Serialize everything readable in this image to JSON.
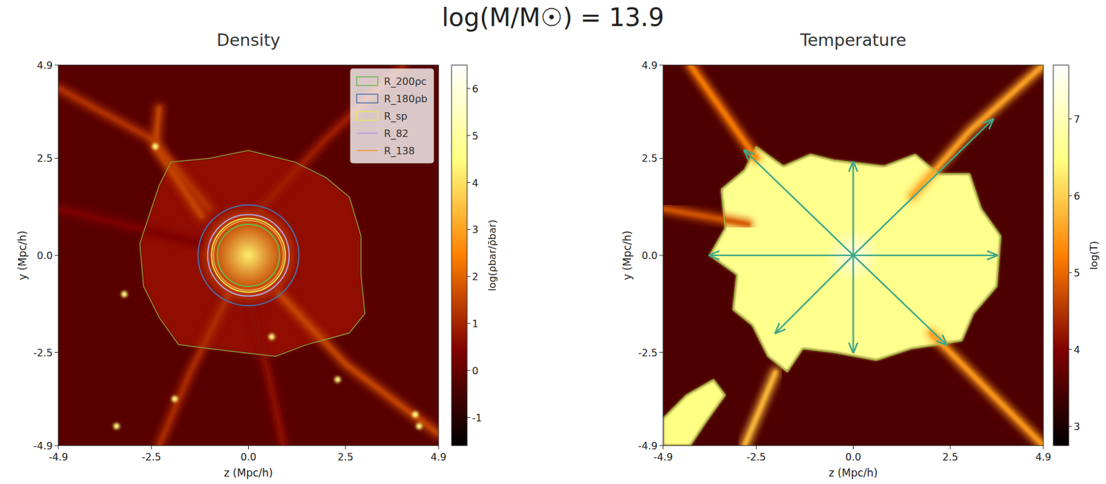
{
  "figure": {
    "title": "log(M/M☉) = 13.9"
  },
  "chart_data": [
    {
      "type": "heatmap",
      "title": "Density",
      "x_label": "z (Mpc/h)",
      "y_label": "y (Mpc/h)",
      "xlim": [
        -4.9,
        4.9
      ],
      "ylim": [
        -4.9,
        4.9
      ],
      "xticks": [
        -4.9,
        -2.5,
        {
          "value": 0,
          "label": "0.0"
        },
        2.5,
        4.9
      ],
      "yticks": [
        -4.9,
        -2.5,
        {
          "value": 0,
          "label": "0.0"
        },
        2.5,
        4.9
      ],
      "colorbar": {
        "label": "log(ρbar/ρ̄bar)",
        "range": [
          -1.6,
          6.5
        ],
        "ticks": [
          -1,
          0,
          1,
          2,
          3,
          4,
          5,
          6
        ]
      },
      "background_value": -0.2,
      "regions": [
        {
          "points": [
            [
              -2.0,
              2.4
            ],
            [
              -1.0,
              2.5
            ],
            [
              0.0,
              2.7
            ],
            [
              1.2,
              2.4
            ],
            [
              2.0,
              2.0
            ],
            [
              2.6,
              1.5
            ],
            [
              2.9,
              0.5
            ],
            [
              2.9,
              -0.5
            ],
            [
              3.0,
              -1.5
            ],
            [
              2.6,
              -2.0
            ],
            [
              1.5,
              -2.3
            ],
            [
              0.7,
              -2.6
            ],
            [
              -0.2,
              -2.5
            ],
            [
              -1.0,
              -2.4
            ],
            [
              -1.8,
              -2.3
            ],
            [
              -2.3,
              -1.6
            ],
            [
              -2.7,
              -0.8
            ],
            [
              -2.8,
              0.3
            ],
            [
              -2.5,
              1.2
            ],
            [
              -2.3,
              1.8
            ]
          ],
          "value": 0.7,
          "color": "#8a9a3a"
        }
      ],
      "filaments": [
        {
          "points": [
            [
              -4.9,
              4.3
            ],
            [
              -2.5,
              3.0
            ],
            [
              -1.0,
              1.2
            ]
          ],
          "value": 1.2
        },
        {
          "points": [
            [
              -2.3,
              3.8
            ],
            [
              -2.4,
              2.8
            ],
            [
              -1.2,
              1.0
            ]
          ],
          "value": 1.5
        },
        {
          "points": [
            [
              0.3,
              1.2
            ],
            [
              2.0,
              3.0
            ],
            [
              4.0,
              4.9
            ]
          ],
          "value": 0.9
        },
        {
          "points": [
            [
              -0.5,
              -1.0
            ],
            [
              -1.5,
              -3.0
            ],
            [
              -2.3,
              -4.9
            ]
          ],
          "value": 1.1
        },
        {
          "points": [
            [
              0.8,
              -1.0
            ],
            [
              2.5,
              -2.8
            ],
            [
              4.9,
              -4.6
            ]
          ],
          "value": 1.5
        },
        {
          "points": [
            [
              -4.9,
              1.2
            ],
            [
              -1.2,
              0.3
            ]
          ],
          "value": 0.4
        },
        {
          "points": [
            [
              0.0,
              -1.2
            ],
            [
              0.5,
              -3.0
            ],
            [
              0.9,
              -4.9
            ]
          ],
          "value": 0.6
        }
      ],
      "halo": {
        "center": [
          0,
          0
        ],
        "radius": 1.3,
        "center_value": 4.2,
        "edge_value": 1.6
      },
      "clumps": {
        "points": [
          [
            -2.4,
            2.8
          ],
          [
            -3.4,
            -4.4
          ],
          [
            4.4,
            -4.4
          ],
          [
            2.3,
            -3.2
          ],
          [
            -1.9,
            -3.7
          ],
          [
            4.3,
            -4.1
          ],
          [
            -3.2,
            -1.0
          ],
          [
            0.6,
            -2.1
          ]
        ],
        "value": 4.5
      },
      "contours": [
        {
          "name": "R_200ρc",
          "color": "#66bb55",
          "radius": 0.8,
          "marker": "square"
        },
        {
          "name": "R_180ρb",
          "color": "#4a6fa5",
          "radius": 1.3,
          "marker": "square"
        },
        {
          "name": "R_sp",
          "color": "#e6e65a",
          "radius": 0.95,
          "marker": "square"
        },
        {
          "name": "R_82",
          "color": "#b4a4e6",
          "radius": 1.05,
          "marker": "line"
        },
        {
          "name": "R_138",
          "color": "#f0a050",
          "radius": 0.9,
          "marker": "line"
        }
      ],
      "legend": "upper right"
    },
    {
      "type": "heatmap",
      "title": "Temperature",
      "x_label": "z (Mpc/h)",
      "y_label": "y (Mpc/h)",
      "xlim": [
        -4.9,
        4.9
      ],
      "ylim": [
        -4.9,
        4.9
      ],
      "xticks": [
        -4.9,
        -2.5,
        {
          "value": 0,
          "label": "0.0"
        },
        2.5,
        4.9
      ],
      "yticks": [
        -4.9,
        -2.5,
        {
          "value": 0,
          "label": "0.0"
        },
        2.5,
        4.9
      ],
      "colorbar": {
        "label": "log(T)",
        "range": [
          2.75,
          7.7
        ],
        "ticks": [
          3,
          4,
          5,
          6,
          7
        ]
      },
      "background_value": 3.5,
      "regions": [
        {
          "points": [
            [
              -0.5,
              2.45
            ],
            [
              0.8,
              2.3
            ],
            [
              1.6,
              2.6
            ],
            [
              2.2,
              2.1
            ],
            [
              3.0,
              2.1
            ],
            [
              3.3,
              1.2
            ],
            [
              3.8,
              0.5
            ],
            [
              3.7,
              -0.8
            ],
            [
              3.1,
              -1.5
            ],
            [
              2.8,
              -2.2
            ],
            [
              2.2,
              -2.3
            ],
            [
              1.5,
              -2.4
            ],
            [
              0.6,
              -2.7
            ],
            [
              -0.5,
              -2.5
            ],
            [
              -1.3,
              -2.4
            ],
            [
              -1.7,
              -3.0
            ],
            [
              -2.2,
              -2.6
            ],
            [
              -2.6,
              -1.8
            ],
            [
              -3.1,
              -1.4
            ],
            [
              -3.0,
              -0.5
            ],
            [
              -3.7,
              0.0
            ],
            [
              -3.3,
              0.7
            ],
            [
              -3.4,
              1.7
            ],
            [
              -2.8,
              2.2
            ],
            [
              -2.5,
              2.8
            ],
            [
              -1.8,
              2.3
            ],
            [
              -1.1,
              2.6
            ]
          ],
          "value": 6.6,
          "color": "#9bc53d"
        },
        {
          "points": [
            [
              -4.9,
              -4.9
            ],
            [
              -4.9,
              -4.2
            ],
            [
              -4.3,
              -3.6
            ],
            [
              -3.6,
              -3.2
            ],
            [
              -3.3,
              -3.6
            ],
            [
              -3.8,
              -4.3
            ],
            [
              -4.2,
              -4.9
            ]
          ],
          "value": 6.5,
          "color": "#9bc53d"
        }
      ],
      "filaments": [
        {
          "points": [
            [
              1.5,
              1.5
            ],
            [
              3.0,
              3.2
            ],
            [
              4.9,
              4.9
            ]
          ],
          "value": 5.6
        },
        {
          "points": [
            [
              2.0,
              -2.0
            ],
            [
              3.5,
              -3.5
            ],
            [
              4.9,
              -4.9
            ]
          ],
          "value": 5.5
        },
        {
          "points": [
            [
              -2.0,
              -3.0
            ],
            [
              -2.8,
              -4.9
            ]
          ],
          "value": 5.8
        },
        {
          "points": [
            [
              -2.5,
              2.5
            ],
            [
              -4.2,
              4.9
            ]
          ],
          "value": 5.2
        },
        {
          "points": [
            [
              -4.9,
              1.2
            ],
            [
              -2.7,
              0.8
            ]
          ],
          "value": 4.8
        }
      ],
      "halo": {
        "center": [
          0,
          0
        ],
        "radius": 1.0,
        "center_value": 7.5,
        "edge_value": 6.6
      },
      "arrows": {
        "color": "#3ea88b",
        "origin": [
          0,
          0
        ],
        "ends": [
          [
            0,
            2.4
          ],
          [
            0,
            -2.5
          ],
          [
            -3.7,
            0
          ],
          [
            3.7,
            0
          ],
          [
            -2.8,
            2.7
          ],
          [
            3.6,
            3.5
          ],
          [
            -2.0,
            -2.0
          ],
          [
            2.4,
            -2.3
          ]
        ]
      }
    }
  ]
}
